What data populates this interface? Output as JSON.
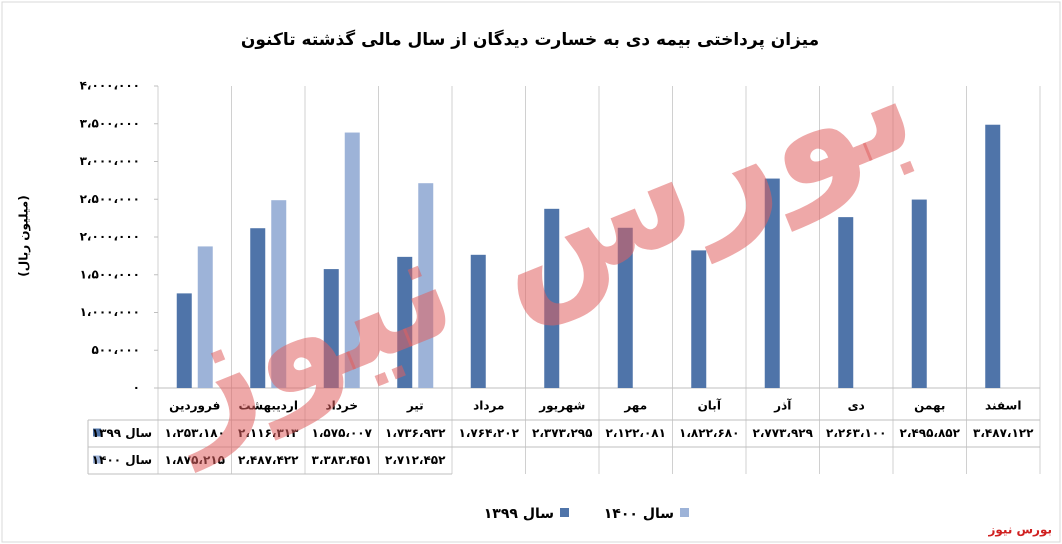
{
  "chart_data": {
    "type": "bar",
    "title": "میزان پرداختی بیمه دی به خسارت دیدگان از سال مالی گذشته تاکنون",
    "y_label": "(میلیون ریال)",
    "categories": [
      "فروردین",
      "اردیبهشت",
      "خرداد",
      "تیر",
      "مرداد",
      "شهریور",
      "مهر",
      "آبان",
      "آذر",
      "دی",
      "بهمن",
      "اسفند"
    ],
    "series": [
      {
        "name": "سال ۱۳۹۹",
        "color": "#4f74a9",
        "values": [
          1253180,
          2116313,
          1575007,
          1736932,
          1764202,
          2373295,
          2122081,
          1822680,
          2773929,
          2263100,
          2495852,
          3487122
        ],
        "value_labels": [
          "۱،۲۵۳،۱۸۰",
          "۲،۱۱۶،۳۱۳",
          "۱،۵۷۵،۰۰۷",
          "۱،۷۳۶،۹۳۲",
          "۱،۷۶۴،۲۰۲",
          "۲،۳۷۳،۲۹۵",
          "۲،۱۲۲،۰۸۱",
          "۱،۸۲۲،۶۸۰",
          "۲،۷۷۳،۹۲۹",
          "۲،۲۶۳،۱۰۰",
          "۲،۴۹۵،۸۵۲",
          "۳،۴۸۷،۱۲۲"
        ]
      },
      {
        "name": "سال ۱۴۰۰",
        "color": "#9db3d8",
        "values": [
          1875215,
          2487422,
          3383451,
          2712452,
          null,
          null,
          null,
          null,
          null,
          null,
          null,
          null
        ],
        "value_labels": [
          "۱،۸۷۵،۲۱۵",
          "۲،۴۸۷،۴۲۲",
          "۳،۳۸۳،۴۵۱",
          "۲،۷۱۲،۴۵۲",
          null,
          null,
          null,
          null,
          null,
          null,
          null,
          null
        ]
      }
    ],
    "ylim": [
      0,
      4000000
    ],
    "yticks": [
      {
        "value": 0,
        "label": "۰"
      },
      {
        "value": 500000,
        "label": "۵۰۰،۰۰۰"
      },
      {
        "value": 1000000,
        "label": "۱،۰۰۰،۰۰۰"
      },
      {
        "value": 1500000,
        "label": "۱،۵۰۰،۰۰۰"
      },
      {
        "value": 2000000,
        "label": "۲،۰۰۰،۰۰۰"
      },
      {
        "value": 2500000,
        "label": "۲،۵۰۰،۰۰۰"
      },
      {
        "value": 3000000,
        "label": "۳،۰۰۰،۰۰۰"
      },
      {
        "value": 3500000,
        "label": "۳،۵۰۰،۰۰۰"
      },
      {
        "value": 4000000,
        "label": "۴،۰۰۰،۰۰۰"
      }
    ],
    "grid": false,
    "watermark": "بورس نیوز",
    "source": "بورس نیوز"
  }
}
